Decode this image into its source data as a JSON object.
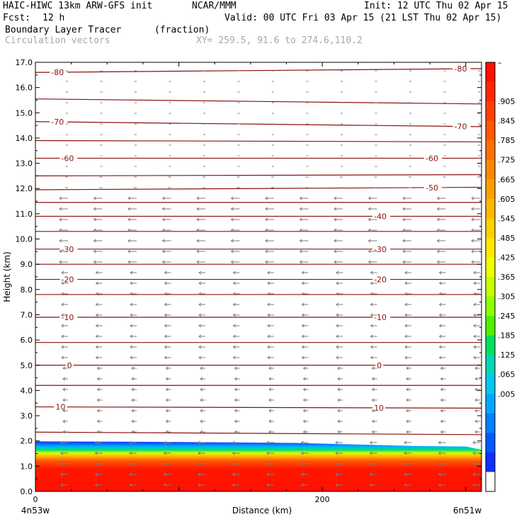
{
  "header": {
    "model": "HAIC-HIWC 13km ARW-GFS init",
    "org": "NCAR/MMM",
    "init": "Init: 12 UTC Thu 02 Apr 15",
    "fcst_label": "Fcst:",
    "fcst_value": "12 h",
    "valid": "Valid: 00 UTC Fri 03 Apr 15 (21 LST Thu 02 Apr 15)",
    "field_name": "Boundary Layer Tracer",
    "field_units": "(fraction)",
    "vectors_label": "Circulation vectors",
    "xy_label": "XY= 259.5, 91.6 to 274.6,110.2"
  },
  "chart_data": {
    "type": "heatmap",
    "xlabel": "Distance (km)",
    "ylabel": "Height (km)",
    "xlim": [
      0,
      311
    ],
    "ylim": [
      0,
      17
    ],
    "x_ticks": [
      0,
      200
    ],
    "y_ticks": [
      "0.0",
      "1.0",
      "2.0",
      "3.0",
      "4.0",
      "5.0",
      "6.0",
      "7.0",
      "8.0",
      "9.0",
      "10.0",
      "11.0",
      "12.0",
      "13.0",
      "14.0",
      "15.0",
      "16.0",
      "17.0"
    ],
    "x_endpoints": {
      "left": "4n53w",
      "right": "6n51w"
    },
    "colorbar": {
      "labels": [
        "–",
        ".905",
        ".845",
        ".785",
        ".725",
        ".665",
        ".605",
        ".545",
        ".485",
        ".425",
        ".365",
        ".305",
        ".245",
        ".185",
        ".125",
        ".065",
        ".005"
      ],
      "colors": [
        "#ff1000",
        "#ff2800",
        "#ff4000",
        "#ff5800",
        "#ff7000",
        "#ff8800",
        "#ffa000",
        "#ffb800",
        "#ffd000",
        "#ffe800",
        "#f0ff00",
        "#c8ff00",
        "#90ff00",
        "#50f000",
        "#00e060",
        "#00d8b8",
        "#00c8f0",
        "#00a8ff",
        "#0080ff",
        "#0058ff",
        "#1030ff",
        "#ffffff"
      ]
    },
    "boundary_layer_top_km": [
      {
        "x": 0,
        "y": 1.98
      },
      {
        "x": 60,
        "y": 1.97
      },
      {
        "x": 120,
        "y": 1.95
      },
      {
        "x": 180,
        "y": 1.92
      },
      {
        "x": 230,
        "y": 1.85
      },
      {
        "x": 265,
        "y": 1.8
      },
      {
        "x": 300,
        "y": 1.78
      },
      {
        "x": 311,
        "y": 1.65
      }
    ],
    "temperature_contours": [
      {
        "label": "-80",
        "y_left": 16.6,
        "y_right": 16.75,
        "lab_x": [
          11,
          292
        ]
      },
      {
        "label": "",
        "y_left": 15.55,
        "y_right": 15.35
      },
      {
        "label": "-70",
        "y_left": 14.65,
        "y_right": 14.45,
        "lab_x": [
          11,
          292
        ]
      },
      {
        "label": "",
        "y_left": 13.9,
        "y_right": 13.85
      },
      {
        "label": "-60",
        "y_left": 13.2,
        "y_right": 13.2,
        "lab_x": [
          18,
          272
        ]
      },
      {
        "label": "",
        "y_left": 12.5,
        "y_right": 12.55
      },
      {
        "label": "-50",
        "y_left": 11.95,
        "y_right": 12.05,
        "lab_x": [
          272
        ]
      },
      {
        "label": "",
        "y_left": 11.45,
        "y_right": 11.45
      },
      {
        "label": "-40",
        "y_left": 10.9,
        "y_right": 10.9,
        "lab_x": [
          236
        ]
      },
      {
        "label": "",
        "y_left": 10.3,
        "y_right": 10.3
      },
      {
        "label": "-30",
        "y_left": 9.6,
        "y_right": 9.6,
        "lab_x": [
          18,
          236
        ]
      },
      {
        "label": "",
        "y_left": 9.0,
        "y_right": 9.0
      },
      {
        "label": "-20",
        "y_left": 8.4,
        "y_right": 8.4,
        "lab_x": [
          18,
          236
        ]
      },
      {
        "label": "",
        "y_left": 7.8,
        "y_right": 7.8
      },
      {
        "label": "-10",
        "y_left": 6.9,
        "y_right": 6.9,
        "lab_x": [
          18,
          236
        ]
      },
      {
        "label": "",
        "y_left": 5.9,
        "y_right": 5.9
      },
      {
        "label": "0",
        "y_left": 5.0,
        "y_right": 5.0,
        "lab_x": [
          22,
          238
        ]
      },
      {
        "label": "",
        "y_left": 4.2,
        "y_right": 4.2
      },
      {
        "label": "10",
        "y_left": 3.35,
        "y_right": 3.3,
        "lab_x": [
          14,
          236
        ]
      },
      {
        "label": "",
        "y_left": 2.35,
        "y_right": 2.25
      }
    ],
    "colors": {
      "contour": "#8b1010",
      "vector": "#7d7d7d",
      "axis": "#000000"
    }
  }
}
